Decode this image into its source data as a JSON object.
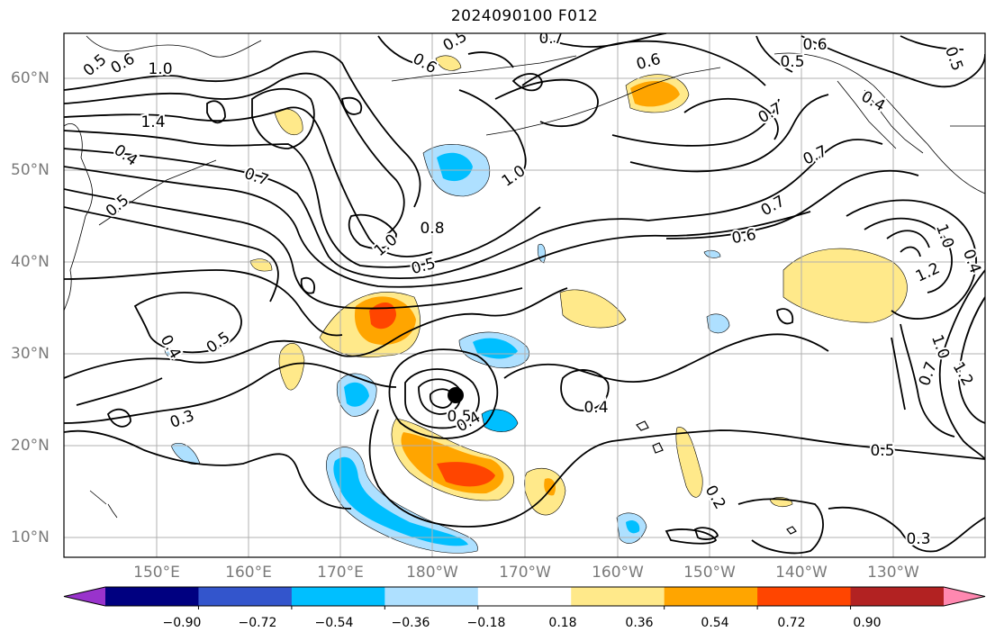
{
  "title": "2024090100 F012",
  "lat_labels": [
    "60°N",
    "50°N",
    "40°N",
    "30°N",
    "20°N",
    "10°N"
  ],
  "lon_labels": [
    "150°E",
    "160°E",
    "170°E",
    "180°W",
    "170°W",
    "160°W",
    "150°W",
    "140°W",
    "130°W"
  ],
  "colorbar": {
    "ticks": [
      "−0.90",
      "−0.72",
      "−0.54",
      "−0.36",
      "−0.18",
      "0.18",
      "0.36",
      "0.54",
      "0.72",
      "0.90"
    ],
    "colors": [
      "#9933cc",
      "#000080",
      "#3355cc",
      "#00bfff",
      "#aee0ff",
      "#ffffff",
      "#ffe98a",
      "#ffa500",
      "#ff4500",
      "#b22222",
      "#ff88b0"
    ]
  },
  "contour_labels": [
    "0.5",
    "0.6",
    "1.0",
    "1.4",
    "0.4",
    "0.7",
    "0.5",
    "0.6",
    "0.7",
    "0.5",
    "0.6",
    "0.5",
    "0.4",
    "0.7",
    "0.7",
    "0.7",
    "0.6",
    "1.0",
    "0.8",
    "1.0",
    "0.5",
    "0.5",
    "0.4",
    "0.3",
    "0.4",
    "0.5",
    "0.4",
    "1.0",
    "0.7",
    "1.2",
    "1.2",
    "1.0",
    "0.5",
    "0.4",
    "0.2",
    "0.3",
    "0.5",
    "0.6"
  ],
  "marker": "tropical-cyclone-center"
}
